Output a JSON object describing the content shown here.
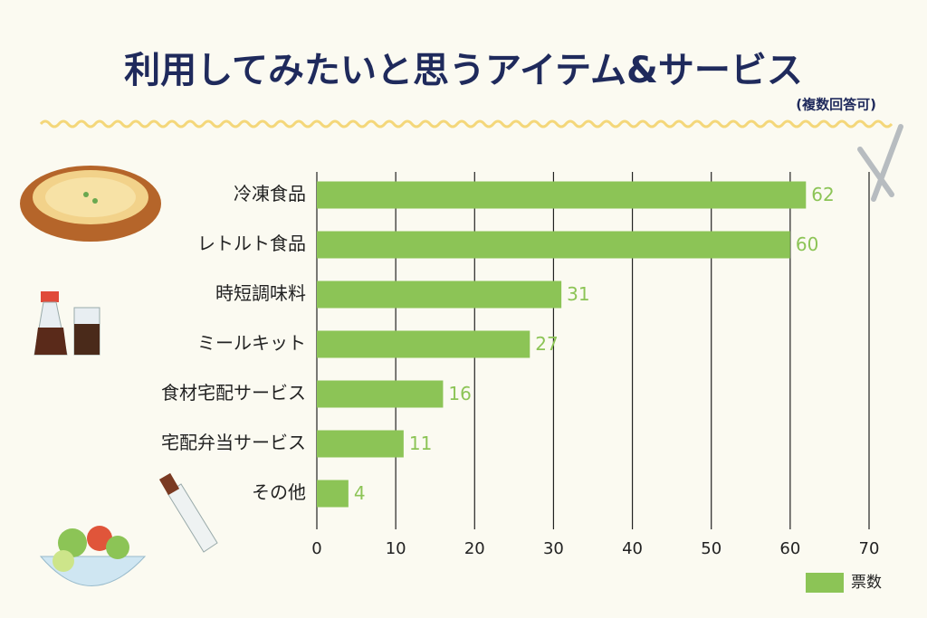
{
  "chart_data": {
    "type": "hbar",
    "title": "利用してみたいと思うアイテム&サービス",
    "subtitle": "(複数回答可)",
    "categories": [
      "冷凍食品",
      "レトルト食品",
      "時短調味料",
      "ミールキット",
      "食材宅配サービス",
      "宅配弁当サービス",
      "その他"
    ],
    "series": [
      {
        "name": "票数",
        "color": "#8cc456",
        "values": [
          62,
          60,
          31,
          27,
          16,
          11,
          4
        ]
      }
    ],
    "xlim": [
      0,
      70
    ],
    "xticks": [
      0,
      10,
      20,
      30,
      40,
      50,
      60,
      70
    ],
    "grid": true,
    "legend": "bottom-right"
  }
}
